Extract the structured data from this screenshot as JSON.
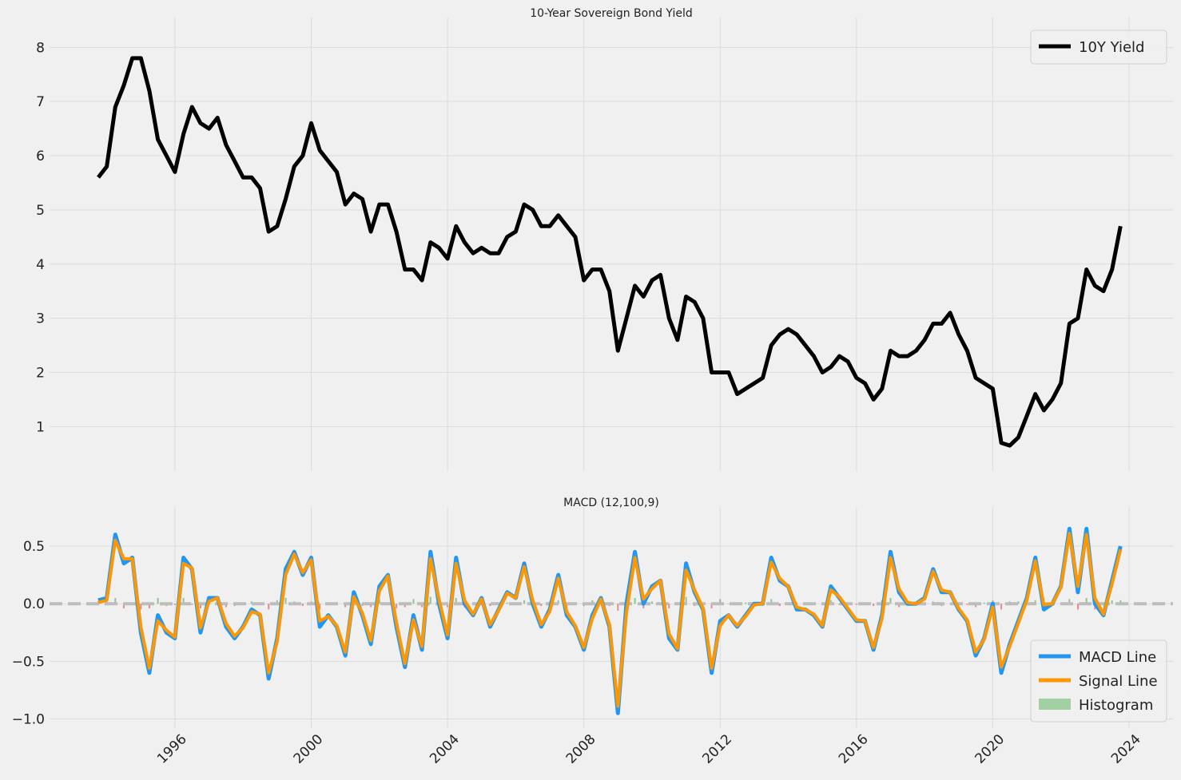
{
  "chart_data": [
    {
      "type": "line",
      "title": "10-Year Sovereign Bond Yield",
      "x": [
        1993.75,
        1994,
        1994.25,
        1994.5,
        1994.75,
        1995,
        1995.25,
        1995.5,
        1995.75,
        1996,
        1996.25,
        1996.5,
        1996.75,
        1997,
        1997.25,
        1997.5,
        1997.75,
        1998,
        1998.25,
        1998.5,
        1998.75,
        1999,
        1999.25,
        1999.5,
        1999.75,
        2000,
        2000.25,
        2000.5,
        2000.75,
        2001,
        2001.25,
        2001.5,
        2001.75,
        2002,
        2002.25,
        2002.5,
        2002.75,
        2003,
        2003.25,
        2003.5,
        2003.75,
        2004,
        2004.25,
        2004.5,
        2004.75,
        2005,
        2005.25,
        2005.5,
        2005.75,
        2006,
        2006.25,
        2006.5,
        2006.75,
        2007,
        2007.25,
        2007.5,
        2007.75,
        2008,
        2008.25,
        2008.5,
        2008.75,
        2009,
        2009.25,
        2009.5,
        2009.75,
        2010,
        2010.25,
        2010.5,
        2010.75,
        2011,
        2011.25,
        2011.5,
        2011.75,
        2012,
        2012.25,
        2012.5,
        2012.75,
        2013,
        2013.25,
        2013.5,
        2013.75,
        2014,
        2014.25,
        2014.5,
        2014.75,
        2015,
        2015.25,
        2015.5,
        2015.75,
        2016,
        2016.25,
        2016.5,
        2016.75,
        2017,
        2017.25,
        2017.5,
        2017.75,
        2018,
        2018.25,
        2018.5,
        2018.75,
        2019,
        2019.25,
        2019.5,
        2019.75,
        2020,
        2020.25,
        2020.5,
        2020.75,
        2021,
        2021.25,
        2021.5,
        2021.75,
        2022,
        2022.25,
        2022.5,
        2022.75,
        2023,
        2023.25,
        2023.5,
        2023.75
      ],
      "series": [
        {
          "name": "10Y Yield",
          "color": "#000000",
          "values": [
            5.6,
            5.8,
            6.9,
            7.3,
            7.8,
            7.8,
            7.2,
            6.3,
            6.0,
            5.7,
            6.4,
            6.9,
            6.6,
            6.5,
            6.7,
            6.2,
            5.9,
            5.6,
            5.6,
            5.4,
            4.6,
            4.7,
            5.2,
            5.8,
            6.0,
            6.6,
            6.1,
            5.9,
            5.7,
            5.1,
            5.3,
            5.2,
            4.6,
            5.1,
            5.1,
            4.6,
            3.9,
            3.9,
            3.7,
            4.4,
            4.3,
            4.1,
            4.7,
            4.4,
            4.2,
            4.3,
            4.2,
            4.2,
            4.5,
            4.6,
            5.1,
            5.0,
            4.7,
            4.7,
            4.9,
            4.7,
            4.5,
            3.7,
            3.9,
            3.9,
            3.5,
            2.4,
            3.0,
            3.6,
            3.4,
            3.7,
            3.8,
            3.0,
            2.6,
            3.4,
            3.3,
            3.0,
            2.0,
            2.0,
            2.0,
            1.6,
            1.7,
            1.8,
            1.9,
            2.5,
            2.7,
            2.8,
            2.7,
            2.5,
            2.3,
            2.0,
            2.1,
            2.3,
            2.2,
            1.9,
            1.8,
            1.5,
            1.7,
            2.4,
            2.3,
            2.3,
            2.4,
            2.6,
            2.9,
            2.9,
            3.1,
            2.7,
            2.4,
            1.9,
            1.8,
            1.7,
            0.7,
            0.65,
            0.8,
            1.2,
            1.6,
            1.3,
            1.5,
            1.8,
            2.9,
            3.0,
            3.9,
            3.6,
            3.5,
            3.9,
            4.7
          ]
        }
      ],
      "xlim": [
        1992.32,
        2025.29
      ],
      "xticks": [
        1996,
        2000,
        2004,
        2008,
        2012,
        2016,
        2020,
        2024
      ],
      "xtick_labels": false,
      "ylim": [
        0.18,
        8.55
      ],
      "yticks": [
        1,
        2,
        3,
        4,
        5,
        6,
        7,
        8
      ],
      "grid": true,
      "legend": "upper right"
    },
    {
      "type": "line",
      "title": "MACD (12,100,9)",
      "x": [
        1993.75,
        1994,
        1994.25,
        1994.5,
        1994.75,
        1995,
        1995.25,
        1995.5,
        1995.75,
        1996,
        1996.25,
        1996.5,
        1996.75,
        1997,
        1997.25,
        1997.5,
        1997.75,
        1998,
        1998.25,
        1998.5,
        1998.75,
        1999,
        1999.25,
        1999.5,
        1999.75,
        2000,
        2000.25,
        2000.5,
        2000.75,
        2001,
        2001.25,
        2001.5,
        2001.75,
        2002,
        2002.25,
        2002.5,
        2002.75,
        2003,
        2003.25,
        2003.5,
        2003.75,
        2004,
        2004.25,
        2004.5,
        2004.75,
        2005,
        2005.25,
        2005.5,
        2005.75,
        2006,
        2006.25,
        2006.5,
        2006.75,
        2007,
        2007.25,
        2007.5,
        2007.75,
        2008,
        2008.25,
        2008.5,
        2008.75,
        2009,
        2009.25,
        2009.5,
        2009.75,
        2010,
        2010.25,
        2010.5,
        2010.75,
        2011,
        2011.25,
        2011.5,
        2011.75,
        2012,
        2012.25,
        2012.5,
        2012.75,
        2013,
        2013.25,
        2013.5,
        2013.75,
        2014,
        2014.25,
        2014.5,
        2014.75,
        2015,
        2015.25,
        2015.5,
        2015.75,
        2016,
        2016.25,
        2016.5,
        2016.75,
        2017,
        2017.25,
        2017.5,
        2017.75,
        2018,
        2018.25,
        2018.5,
        2018.75,
        2019,
        2019.25,
        2019.5,
        2019.75,
        2020,
        2020.25,
        2020.5,
        2020.75,
        2021,
        2021.25,
        2021.5,
        2021.75,
        2022,
        2022.25,
        2022.5,
        2022.75,
        2023,
        2023.25,
        2023.5,
        2023.75
      ],
      "series": [
        {
          "name": "MACD Line",
          "color": "#2196f3",
          "values": [
            0.03,
            0.05,
            0.6,
            0.35,
            0.4,
            -0.25,
            -0.6,
            -0.1,
            -0.25,
            -0.3,
            0.4,
            0.3,
            -0.25,
            0.05,
            0.05,
            -0.2,
            -0.3,
            -0.2,
            -0.05,
            -0.1,
            -0.65,
            -0.3,
            0.3,
            0.45,
            0.25,
            0.4,
            -0.2,
            -0.1,
            -0.2,
            -0.45,
            0.1,
            -0.1,
            -0.35,
            0.15,
            0.25,
            -0.2,
            -0.55,
            -0.1,
            -0.4,
            0.45,
            0.0,
            -0.3,
            0.4,
            0.0,
            -0.1,
            0.05,
            -0.2,
            -0.05,
            0.1,
            0.05,
            0.35,
            0.0,
            -0.2,
            -0.05,
            0.25,
            -0.1,
            -0.2,
            -0.4,
            -0.1,
            0.05,
            -0.2,
            -0.95,
            0.0,
            0.45,
            0.0,
            0.15,
            0.2,
            -0.3,
            -0.4,
            0.35,
            0.1,
            -0.05,
            -0.6,
            -0.15,
            -0.1,
            -0.2,
            -0.1,
            0.0,
            0.0,
            0.4,
            0.2,
            0.15,
            -0.05,
            -0.05,
            -0.1,
            -0.2,
            0.15,
            0.05,
            -0.05,
            -0.15,
            -0.15,
            -0.4,
            -0.1,
            0.45,
            0.1,
            0.0,
            0.0,
            0.05,
            0.3,
            0.1,
            0.1,
            -0.05,
            -0.15,
            -0.45,
            -0.3,
            0.0,
            -0.6,
            -0.35,
            -0.15,
            0.05,
            0.4,
            -0.05,
            0.0,
            0.15,
            0.65,
            0.1,
            0.65,
            0.0,
            -0.1,
            0.2,
            0.5
          ]
        },
        {
          "name": "Signal Line",
          "color": "#ff9800",
          "values": [
            0.01,
            0.03,
            0.55,
            0.39,
            0.39,
            -0.2,
            -0.56,
            -0.15,
            -0.23,
            -0.29,
            0.35,
            0.31,
            -0.21,
            0.02,
            0.05,
            -0.17,
            -0.28,
            -0.21,
            -0.07,
            -0.09,
            -0.6,
            -0.33,
            0.25,
            0.43,
            0.27,
            0.38,
            -0.15,
            -0.11,
            -0.19,
            -0.42,
            0.06,
            -0.08,
            -0.32,
            0.11,
            0.24,
            -0.16,
            -0.52,
            -0.14,
            -0.37,
            0.39,
            0.04,
            -0.27,
            0.35,
            0.03,
            -0.09,
            0.04,
            -0.18,
            -0.06,
            0.09,
            0.05,
            0.32,
            0.03,
            -0.18,
            -0.07,
            0.22,
            -0.07,
            -0.19,
            -0.38,
            -0.13,
            0.04,
            -0.18,
            -0.89,
            -0.08,
            0.4,
            0.04,
            0.13,
            0.2,
            -0.26,
            -0.39,
            0.29,
            0.12,
            -0.04,
            -0.56,
            -0.19,
            -0.1,
            -0.19,
            -0.11,
            -0.01,
            0,
            0.36,
            0.22,
            0.15,
            -0.03,
            -0.05,
            -0.09,
            -0.19,
            0.12,
            0.06,
            -0.04,
            -0.14,
            -0.15,
            -0.38,
            -0.13,
            0.4,
            0.13,
            0.01,
            0,
            0.04,
            0.28,
            0.12,
            0.1,
            -0.04,
            -0.14,
            -0.42,
            -0.31,
            -0.03,
            -0.55,
            -0.37,
            -0.17,
            0.03,
            0.37,
            -0.01,
            0,
            0.14,
            0.61,
            0.15,
            0.6,
            0.05,
            -0.09,
            0.17,
            0.47
          ]
        },
        {
          "name": "Histogram",
          "type": "bar",
          "color": "#2ca02c",
          "negative_color": "#d62728",
          "values": [
            0.02,
            0.02,
            0.05,
            -0.04,
            0.01,
            -0.05,
            -0.04,
            0.05,
            -0.02,
            -0.01,
            0.05,
            -0.01,
            -0.04,
            0.03,
            0,
            -0.03,
            -0.02,
            0.01,
            0.02,
            -0.01,
            -0.05,
            0.03,
            0.05,
            0.02,
            -0.02,
            0.02,
            -0.05,
            0.01,
            -0.01,
            -0.03,
            0.04,
            -0.02,
            -0.03,
            0.04,
            0.01,
            -0.04,
            -0.03,
            0.04,
            -0.03,
            0.06,
            -0.04,
            -0.03,
            0.05,
            -0.03,
            -0.01,
            0.01,
            -0.02,
            0.01,
            0.01,
            0,
            0.03,
            -0.03,
            -0.02,
            0.02,
            0.03,
            -0.03,
            -0.01,
            -0.02,
            0.03,
            0.01,
            -0.02,
            -0.06,
            0.08,
            0.05,
            -0.04,
            0.02,
            0,
            -0.04,
            -0.01,
            0.06,
            -0.02,
            -0.01,
            -0.04,
            0.04,
            0,
            -0.01,
            0.01,
            0.01,
            0,
            0.04,
            -0.02,
            0,
            -0.02,
            0,
            -0.01,
            -0.01,
            0.03,
            -0.01,
            -0.01,
            -0.01,
            0,
            -0.02,
            0.03,
            0.05,
            -0.03,
            -0.01,
            0,
            0.01,
            0.02,
            -0.02,
            0,
            -0.01,
            -0.01,
            -0.03,
            0.01,
            0.03,
            -0.05,
            0.02,
            0.02,
            0.02,
            0.03,
            -0.04,
            0,
            0.01,
            0.04,
            -0.05,
            0.05,
            -0.05,
            -0.01,
            0.03,
            0.03
          ]
        }
      ],
      "xlim": [
        1992.32,
        2025.29
      ],
      "xticks": [
        1996,
        2000,
        2004,
        2008,
        2012,
        2016,
        2020,
        2024
      ],
      "xtick_labels": true,
      "ylim": [
        -1.08,
        0.84
      ],
      "yticks": [
        {
          "value": -1.0,
          "label": "−1.0"
        },
        {
          "value": -0.5,
          "label": "−0.5"
        },
        {
          "value": 0.0,
          "label": "0.0"
        },
        {
          "value": 0.5,
          "label": "0.5"
        }
      ],
      "hline": 0,
      "grid": true,
      "legend": "lower right"
    }
  ]
}
